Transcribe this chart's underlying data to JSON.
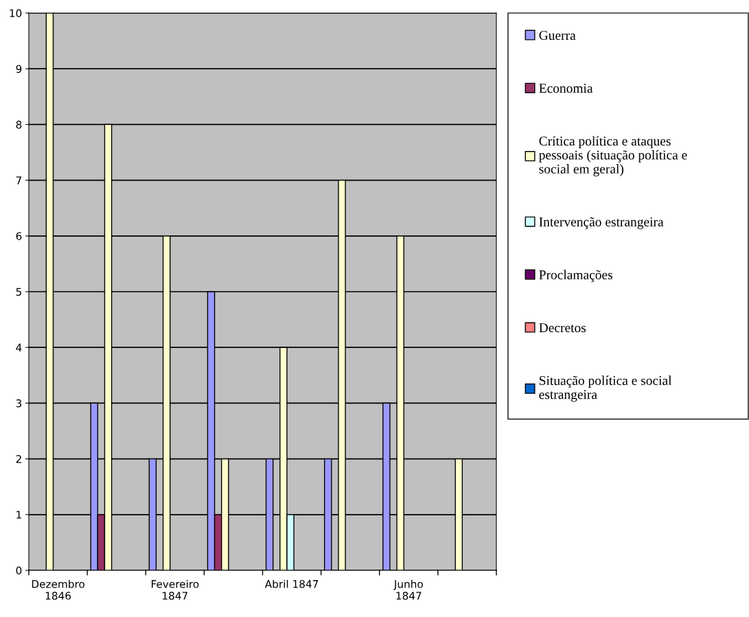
{
  "chart_data": {
    "type": "bar",
    "categories": [
      "Dezembro\n1846",
      null,
      "Fevereiro\n1847",
      null,
      "Abril 1847",
      null,
      "Junho\n1847",
      null
    ],
    "series": [
      {
        "name": "Guerra",
        "color": "#9999ff",
        "values": [
          null,
          3,
          2,
          5,
          2,
          2,
          3,
          null
        ]
      },
      {
        "name": "Economia",
        "color": "#993366",
        "values": [
          null,
          1,
          null,
          1,
          null,
          null,
          null,
          null
        ]
      },
      {
        "name": "Crítica política e ataques\npessoais (situação política e\nsocial em geral)",
        "color": "#ffffcc",
        "values": [
          10,
          8,
          6,
          2,
          4,
          7,
          6,
          2
        ]
      },
      {
        "name": "Intervenção estrangeira",
        "color": "#ccffff",
        "values": [
          null,
          null,
          null,
          null,
          1,
          null,
          null,
          null
        ]
      },
      {
        "name": "Proclamações",
        "color": "#660066",
        "values": [
          null,
          null,
          null,
          null,
          null,
          null,
          null,
          null
        ]
      },
      {
        "name": "Decretos",
        "color": "#ff8080",
        "values": [
          null,
          null,
          null,
          null,
          null,
          null,
          null,
          null
        ]
      },
      {
        "name": "Situação política e social\nestrangeira",
        "color": "#0066cc",
        "values": [
          null,
          null,
          null,
          null,
          null,
          null,
          null,
          null
        ]
      }
    ],
    "ylim": [
      0,
      10
    ],
    "yticks": [
      0,
      1,
      2,
      3,
      4,
      5,
      6,
      7,
      8,
      9,
      10
    ],
    "grid": "y",
    "legend": "right"
  }
}
